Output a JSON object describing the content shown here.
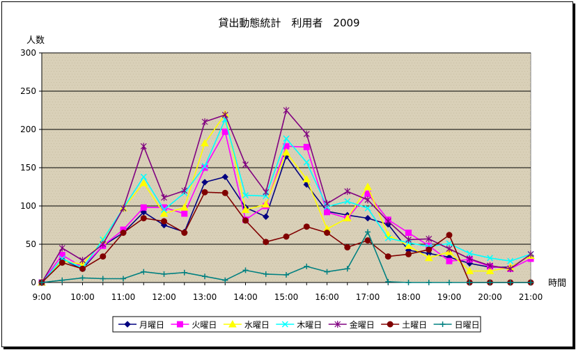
{
  "chart_data": {
    "type": "line",
    "title": "貸出動態統計　利用者　2009",
    "ylabel": "人数",
    "xlabel": "時間",
    "ylim": [
      0,
      300
    ],
    "yticks": [
      0,
      50,
      100,
      150,
      200,
      250,
      300
    ],
    "x": [
      9.0,
      9.5,
      10.0,
      10.5,
      11.0,
      11.5,
      12.0,
      12.5,
      13.0,
      13.5,
      14.0,
      14.5,
      15.0,
      15.5,
      16.0,
      16.5,
      17.0,
      17.5,
      18.0,
      18.5,
      19.0,
      19.5,
      20.0,
      20.5,
      21.0
    ],
    "xtick_labels": [
      "9:00",
      "10:00",
      "11:00",
      "12:00",
      "13:00",
      "14:00",
      "15:00",
      "16:00",
      "17:00",
      "18:00",
      "19:00",
      "20:00",
      "21:00"
    ],
    "grid": true,
    "legend_position": "bottom",
    "plot_background": "#d9d0b8",
    "series": [
      {
        "name": "月曜日",
        "color": "#000080",
        "marker": "diamond",
        "values": [
          0,
          30,
          18,
          48,
          65,
          92,
          75,
          66,
          131,
          138,
          98,
          86,
          165,
          128,
          93,
          88,
          84,
          76,
          42,
          38,
          33,
          25,
          20,
          20,
          35
        ]
      },
      {
        "name": "火曜日",
        "color": "#ff00ff",
        "marker": "square",
        "values": [
          0,
          36,
          20,
          48,
          69,
          98,
          98,
          90,
          150,
          197,
          82,
          100,
          178,
          177,
          92,
          84,
          116,
          82,
          65,
          48,
          28,
          30,
          21,
          18,
          31
        ]
      },
      {
        "name": "水曜日",
        "color": "#ffff00",
        "marker": "triangle",
        "values": [
          0,
          28,
          24,
          55,
          97,
          130,
          90,
          98,
          182,
          220,
          95,
          102,
          170,
          135,
          70,
          84,
          125,
          62,
          48,
          32,
          40,
          15,
          15,
          20,
          35
        ]
      },
      {
        "name": "木曜日",
        "color": "#00ffff",
        "marker": "x",
        "values": [
          0,
          31,
          19,
          56,
          97,
          138,
          95,
          117,
          152,
          213,
          114,
          113,
          188,
          157,
          99,
          106,
          97,
          58,
          52,
          47,
          51,
          38,
          32,
          28,
          37
        ]
      },
      {
        "name": "金曜日",
        "color": "#800080",
        "marker": "star",
        "values": [
          0,
          45,
          29,
          50,
          97,
          178,
          111,
          120,
          210,
          219,
          154,
          118,
          225,
          194,
          103,
          119,
          108,
          80,
          56,
          57,
          44,
          31,
          22,
          18,
          37
        ]
      },
      {
        "name": "土曜日",
        "color": "#800000",
        "marker": "circle",
        "values": [
          0,
          26,
          18,
          34,
          65,
          84,
          80,
          65,
          118,
          117,
          81,
          53,
          60,
          73,
          65,
          46,
          55,
          34,
          37,
          43,
          62,
          0,
          0,
          0,
          0
        ]
      },
      {
        "name": "日曜日",
        "color": "#008080",
        "marker": "plus",
        "values": [
          0,
          3,
          6,
          5,
          5,
          14,
          11,
          13,
          8,
          3,
          16,
          11,
          10,
          21,
          14,
          18,
          66,
          1,
          0,
          0,
          0,
          0,
          0,
          0,
          0
        ]
      }
    ]
  }
}
